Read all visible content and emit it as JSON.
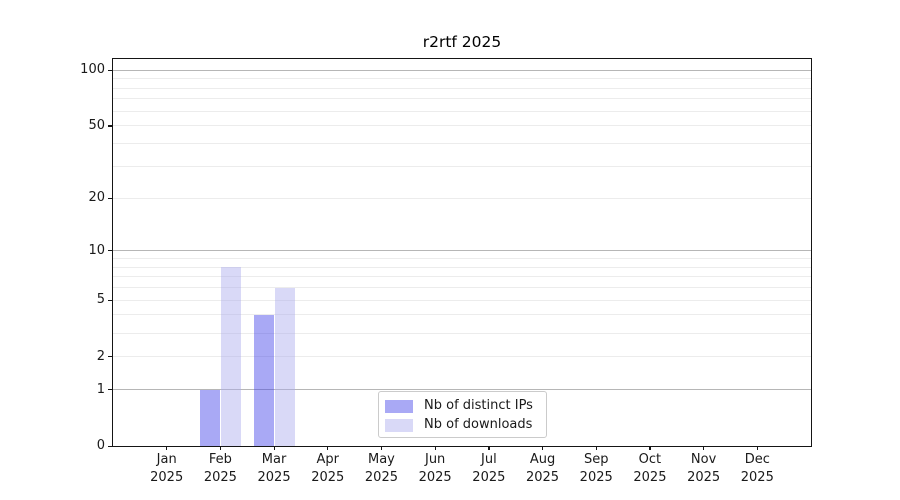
{
  "chart_data": {
    "type": "bar",
    "title": "r2rtf 2025",
    "year": "2025",
    "months": [
      "Jan",
      "Feb",
      "Mar",
      "Apr",
      "May",
      "Jun",
      "Jul",
      "Aug",
      "Sep",
      "Oct",
      "Nov",
      "Dec"
    ],
    "series": [
      {
        "name": "Nb of distinct IPs",
        "color": "#a9a9f5",
        "bar_fill": "rgba(64,64,233,0.45)",
        "values": [
          0,
          1,
          4,
          0,
          0,
          0,
          0,
          0,
          0,
          0,
          0,
          0
        ]
      },
      {
        "name": "Nb of downloads",
        "color": "#d9d9f7",
        "bar_fill": "rgba(171,171,237,0.45)",
        "values": [
          0,
          8,
          6,
          0,
          0,
          0,
          0,
          0,
          0,
          0,
          0,
          0
        ]
      }
    ],
    "y_axis": {
      "scale": "log1p",
      "ylim": [
        0,
        115
      ],
      "ticks": [
        0,
        1,
        2,
        5,
        10,
        20,
        50,
        100
      ],
      "major_gridlines": [
        1,
        10,
        100
      ],
      "minor_gridlines": [
        2,
        3,
        4,
        5,
        6,
        7,
        8,
        9,
        20,
        30,
        40,
        50,
        60,
        70,
        80,
        90
      ]
    },
    "legend_position": "bottom-center-inside",
    "grid": true
  },
  "colors": {
    "background": "#ffffff",
    "frame": "#151515",
    "text": "#1a1a1a",
    "major_grid": "#b6b6b6",
    "minor_grid": "#ececec"
  }
}
